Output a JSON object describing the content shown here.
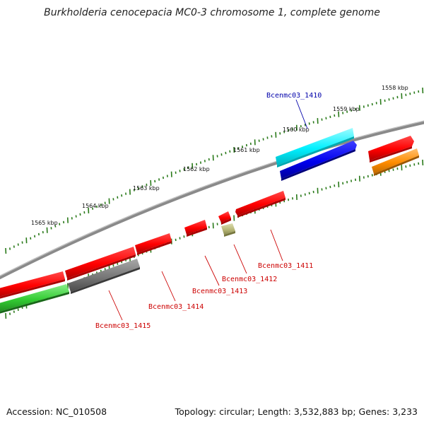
{
  "header": {
    "title": "Burkholderia cenocepacia MC0-3 chromosome 1, complete genome"
  },
  "footer": {
    "accession": "Accession: NC_010508",
    "topology": "Topology: circular; Length: 3,532,883 bp; Genes: 3,233"
  },
  "scale_ticks": [
    {
      "label": "1558 kbp"
    },
    {
      "label": "1559 kbp"
    },
    {
      "label": "1560 kbp"
    },
    {
      "label": "1561 kbp"
    },
    {
      "label": "1562 kbp"
    },
    {
      "label": "1563 kbp"
    },
    {
      "label": "1564 kbp"
    },
    {
      "label": "1565 kbp"
    }
  ],
  "gene_labels": [
    {
      "label": "Bcenmc03_1410",
      "color": "#0000aa"
    },
    {
      "label": "Bcenmc03_1411",
      "color": "#cc0000"
    },
    {
      "label": "Bcenmc03_1412",
      "color": "#cc0000"
    },
    {
      "label": "Bcenmc03_1413",
      "color": "#cc0000"
    },
    {
      "label": "Bcenmc03_1414",
      "color": "#cc0000"
    },
    {
      "label": "Bcenmc03_1415",
      "color": "#cc0000"
    }
  ],
  "colors": {
    "backbone": "#8a8a8a",
    "scale_dots": "#2a7a1a",
    "cds_red": "#ff0000",
    "cds_cyan": "#00ffff",
    "cds_blue": "#0000ee",
    "cds_green": "#33cc33",
    "cds_gray": "#777777",
    "cds_orange": "#ff8c00",
    "cds_olive": "#b8b878"
  }
}
